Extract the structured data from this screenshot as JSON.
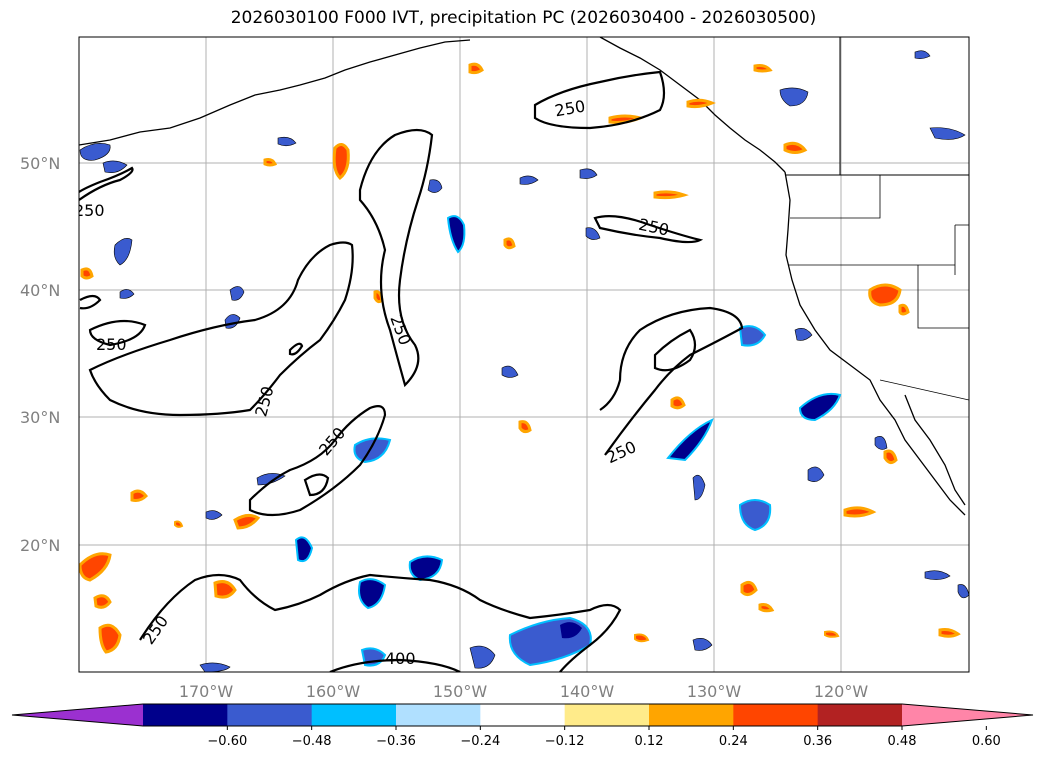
{
  "title": "2026030100 F000 IVT, precipitation PC (2026030400 - 2026030500)",
  "latitude_labels": [
    "50°N",
    "40°N",
    "30°N",
    "20°N"
  ],
  "longitude_labels": [
    "170°W",
    "160°W",
    "150°W",
    "140°W",
    "130°W",
    "120°W"
  ],
  "colorbar": {
    "ticks": [
      "−0.60",
      "−0.48",
      "−0.36",
      "−0.24",
      "−0.12",
      "0.12",
      "0.24",
      "0.36",
      "0.48",
      "0.60"
    ],
    "colors": [
      "#9b30d0",
      "#00008b",
      "#3a5bcf",
      "#00bfff",
      "#b0e0ff",
      "#ffffff",
      "#ffeb8a",
      "#ffa500",
      "#ff4500",
      "#b22222",
      "#ff85a8"
    ]
  },
  "contour_labels": [
    "250",
    "250",
    "250",
    "250",
    "250",
    "250",
    "250",
    "250",
    "400"
  ],
  "colors": {
    "contour": "#000000",
    "grid": "#b0b0b0",
    "coast": "#000000"
  }
}
